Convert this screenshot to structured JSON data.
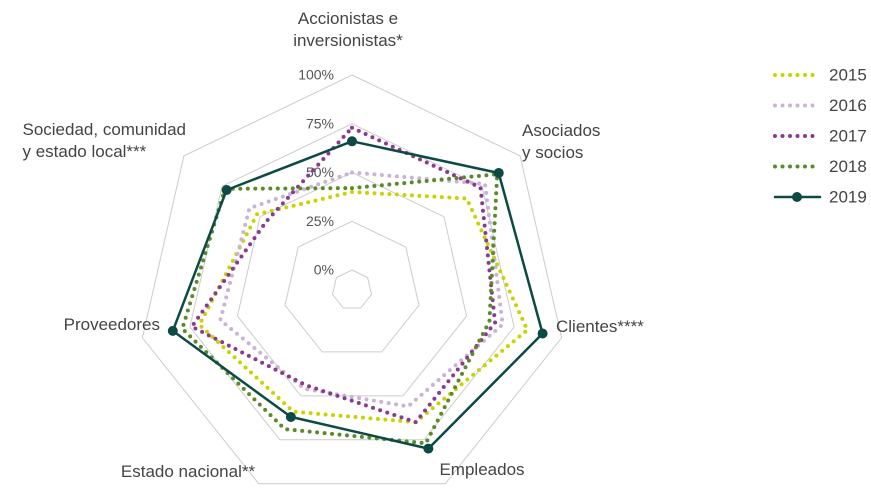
{
  "chart_data": {
    "type": "radar",
    "categories": [
      "Accionistas e\ninversionistas*",
      "Asociados\ny socios",
      "Clientes****",
      "Empleados",
      "Estado nacional**",
      "Proveedores",
      "Sociedad, comunidad\ny estado local***"
    ],
    "series": [
      {
        "name": "2015",
        "color": "#c8d400",
        "values": [
          40,
          65,
          82,
          65,
          59,
          70,
          52
        ]
      },
      {
        "name": "2016",
        "color": "#c9b3d6",
        "values": [
          50,
          77,
          69,
          56,
          46,
          59,
          57
        ]
      },
      {
        "name": "2017",
        "color": "#8b3a8f",
        "values": [
          73,
          74,
          65,
          65,
          44,
          74,
          46
        ]
      },
      {
        "name": "2018",
        "color": "#5a8a2a",
        "values": [
          42,
          85,
          62,
          77,
          69,
          79,
          73
        ]
      },
      {
        "name": "2019",
        "color": "#0d4a44",
        "values": [
          66,
          86,
          90,
          80,
          62,
          84,
          72
        ]
      }
    ],
    "ylim": [
      0,
      100
    ],
    "yticks": [
      {
        "value": 0,
        "label": "0%"
      },
      {
        "value": 25,
        "label": "25%"
      },
      {
        "value": 50,
        "label": "50%"
      },
      {
        "value": 75,
        "label": "75%"
      },
      {
        "value": 100,
        "label": "100%"
      }
    ],
    "grid": true,
    "legend": "top-right"
  }
}
